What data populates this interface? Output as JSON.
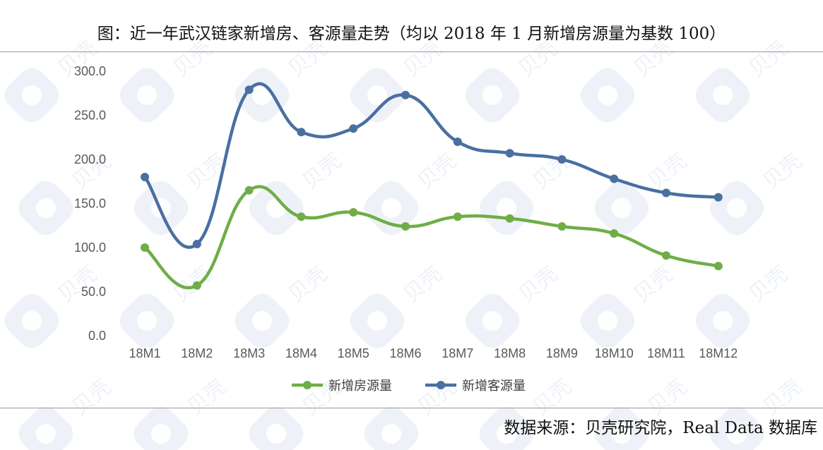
{
  "header": {
    "title": "图：近一年武汉链家新增房、客源量走势（均以 2018 年 1 月新增房源量为基数 100）"
  },
  "footer": {
    "source": "数据来源：贝壳研究院，Real Data 数据库"
  },
  "watermark": {
    "text": "贝壳",
    "icon": "beike-logo-icon"
  },
  "chart_data": {
    "type": "line",
    "title": "",
    "xlabel": "",
    "ylabel": "",
    "categories": [
      "18M1",
      "18M2",
      "18M3",
      "18M4",
      "18M5",
      "18M6",
      "18M7",
      "18M8",
      "18M9",
      "18M10",
      "18M11",
      "18M12"
    ],
    "y_ticks": [
      "0.0",
      "50.0",
      "100.0",
      "150.0",
      "200.0",
      "250.0",
      "300.0"
    ],
    "ylim": [
      0,
      300
    ],
    "grid": false,
    "smooth": true,
    "legend_position": "bottom",
    "series": [
      {
        "name": "新增房源量",
        "color": "#70ad47",
        "values": [
          100,
          57,
          165,
          135,
          140,
          124,
          135,
          133,
          124,
          116,
          91,
          79
        ]
      },
      {
        "name": "新增客源量",
        "color": "#4a6fa1",
        "values": [
          180,
          104,
          279,
          231,
          235,
          273,
          220,
          207,
          200,
          178,
          162,
          157
        ]
      }
    ]
  }
}
